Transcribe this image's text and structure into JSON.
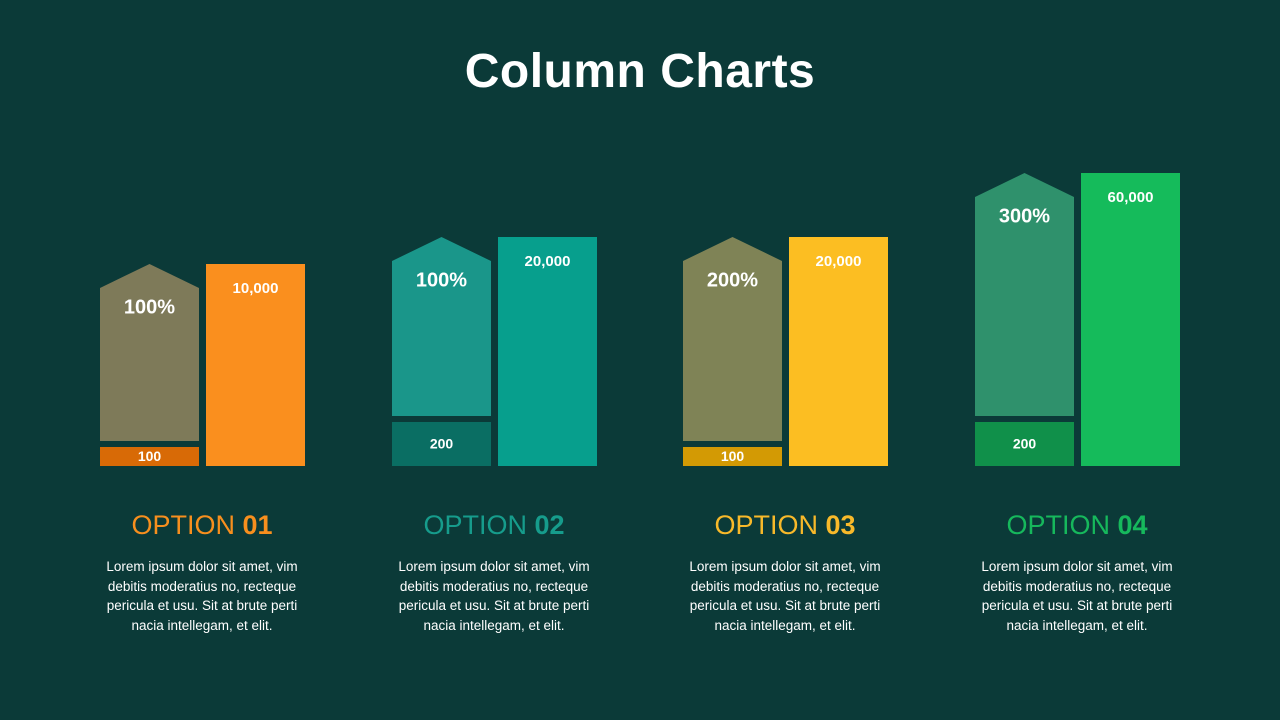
{
  "title": "Column Charts",
  "chart_data": {
    "type": "bar",
    "categories": [
      "OPTION 01",
      "OPTION 02",
      "OPTION 03",
      "OPTION 04"
    ],
    "series": [
      {
        "values": [
          100,
          200,
          100,
          200
        ],
        "labels": [
          "100",
          "200",
          "100",
          "200"
        ]
      },
      {
        "values": [
          100,
          100,
          200,
          300
        ],
        "labels": [
          "100%",
          "100%",
          "200%",
          "300%"
        ]
      },
      {
        "values": [
          10000,
          20000,
          20000,
          60000
        ],
        "labels": [
          "10,000",
          "20,000",
          "20,000",
          "60,000"
        ]
      }
    ]
  },
  "options": [
    {
      "label": "OPTION",
      "number": "01",
      "color": "#f78f1e",
      "arrow_color": "#7e7a59",
      "base_color": "#d86a06",
      "col_color": "#fa8f1e",
      "description": "Lorem ipsum dolor sit amet, vim debitis moderatius no, recteque pericula et usu. Sit at brute perti nacia intellegam, et elit."
    },
    {
      "label": "OPTION",
      "number": "02",
      "color": "#169c8c",
      "arrow_color": "#1a968a",
      "base_color": "#0a6e63",
      "col_color": "#079f8d",
      "description": "Lorem ipsum dolor sit amet, vim debitis moderatius no, recteque pericula et usu. Sit at brute perti nacia intellegam, et elit."
    },
    {
      "label": "OPTION",
      "number": "03",
      "color": "#f8b92a",
      "arrow_color": "#7f8356",
      "base_color": "#d39a04",
      "col_color": "#fcbe22",
      "description": "Lorem ipsum dolor sit amet, vim debitis moderatius no, recteque pericula et usu. Sit at brute perti nacia intellegam, et elit."
    },
    {
      "label": "OPTION",
      "number": "04",
      "color": "#16b85c",
      "arrow_color": "#2f916c",
      "base_color": "#10904a",
      "col_color": "#15bb5b",
      "description": "Lorem ipsum dolor sit amet, vim debitis moderatius no, recteque pericula et usu. Sit at brute perti nacia intellegam, et elit."
    }
  ]
}
